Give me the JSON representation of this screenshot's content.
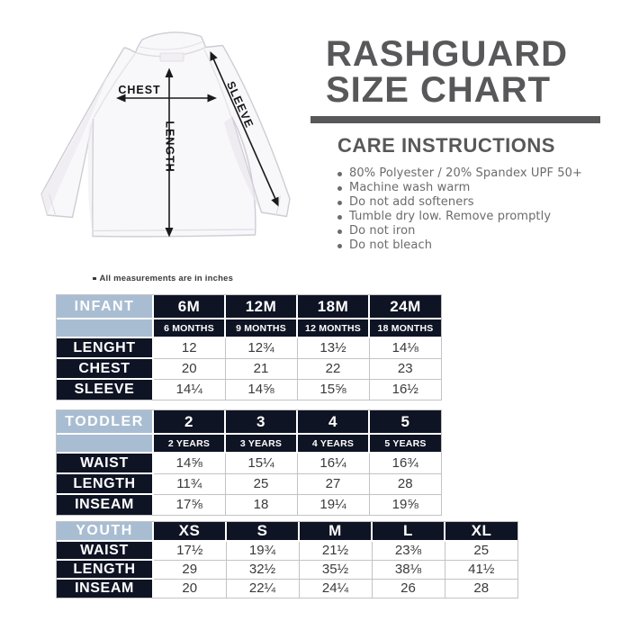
{
  "header": {
    "title_line1": "RASHGUARD",
    "title_line2": "SIZE CHART",
    "care_heading": "CARE INSTRUCTIONS",
    "care_items": [
      "80% Polyester / 20% Spandex UPF 50+",
      "Machine wash warm",
      "Do not add softeners",
      "Tumble dry low. Remove promptly",
      "Do not iron",
      "Do not bleach"
    ]
  },
  "illustration": {
    "chest_label": "CHEST",
    "length_label": "LENGTH",
    "sleeve_label": "SLEEVE"
  },
  "note": {
    "text": "All measurements are in inches"
  },
  "tables": [
    {
      "id": "infant",
      "group_label": "INFANT",
      "sizes": [
        "6M",
        "12M",
        "18M",
        "24M"
      ],
      "sub_sizes": [
        "6 MONTHS",
        "9 MONTHS",
        "12 MONTHS",
        "18 MONTHS"
      ],
      "rows": [
        {
          "label": "LENGHT",
          "values": [
            "12",
            "12¾",
            "13½",
            "14⅛"
          ]
        },
        {
          "label": "CHEST",
          "values": [
            "20",
            "21",
            "22",
            "23"
          ]
        },
        {
          "label": "SLEEVE",
          "values": [
            "14¼",
            "14⅝",
            "15⅝",
            "16½"
          ]
        }
      ]
    },
    {
      "id": "toddler",
      "group_label": "TODDLER",
      "sizes": [
        "2",
        "3",
        "4",
        "5"
      ],
      "sub_sizes": [
        "2 YEARS",
        "3 YEARS",
        "4 YEARS",
        "5 YEARS"
      ],
      "rows": [
        {
          "label": "WAIST",
          "values": [
            "14⅝",
            "15¼",
            "16¼",
            "16¾"
          ]
        },
        {
          "label": "LENGTH",
          "values": [
            "11¾",
            "25",
            "27",
            "28"
          ]
        },
        {
          "label": "INSEAM",
          "values": [
            "17⅝",
            "18",
            "19¼",
            "19⅝"
          ]
        }
      ]
    },
    {
      "id": "youth",
      "group_label": "YOUTH",
      "sizes": [
        "XS",
        "S",
        "M",
        "L",
        "XL"
      ],
      "sub_sizes": null,
      "rows": [
        {
          "label": "WAIST",
          "values": [
            "17½",
            "19¾",
            "21½",
            "23⅜",
            "25"
          ]
        },
        {
          "label": "LENGTH",
          "values": [
            "29",
            "32½",
            "35½",
            "38⅛",
            "41½"
          ]
        },
        {
          "label": "INSEAM",
          "values": [
            "20",
            "22¼",
            "24¼",
            "26",
            "28"
          ]
        }
      ]
    }
  ],
  "colors": {
    "title_gray": "#58585a",
    "care_gray": "#6a6b6e",
    "table_dark": "#0f1424",
    "table_blue": "#a9bdd2",
    "table_border": "#c4c2c7",
    "value_text": "#3a3a3c",
    "arrow_black": "#1a1a1d"
  }
}
